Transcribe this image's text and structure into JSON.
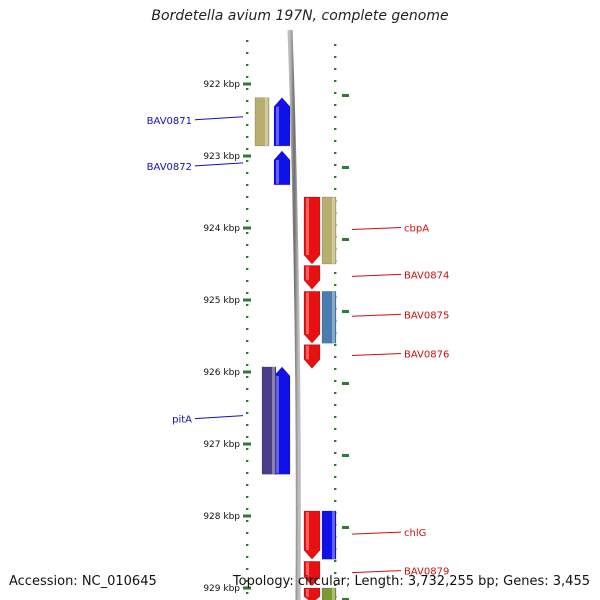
{
  "title": "Bordetella avium 197N, complete genome",
  "footer": {
    "accession": "Accession: NC_010645",
    "topology": "Topology: circular; Length: 3,732,255 bp; Genes: 3,455"
  },
  "colors": {
    "backbone": "#8a8a8a",
    "tick": "#2e7d2e",
    "left_label": "#1010c0",
    "right_label": "#d01010"
  },
  "scale": {
    "unit": "kbp",
    "ticks": [
      {
        "kbp": 922,
        "label": "922 kbp"
      },
      {
        "kbp": 923,
        "label": "923 kbp"
      },
      {
        "kbp": 924,
        "label": "924 kbp"
      },
      {
        "kbp": 925,
        "label": "925 kbp"
      },
      {
        "kbp": 926,
        "label": "926 kbp"
      },
      {
        "kbp": 927,
        "label": "927 kbp"
      },
      {
        "kbp": 928,
        "label": "928 kbp"
      },
      {
        "kbp": 929,
        "label": "929 kbp"
      }
    ]
  },
  "genes": [
    {
      "name": "BAV0871",
      "strand": "+",
      "start_kbp": 922.19,
      "end_kbp": 922.86,
      "gene_color": "#1010e8",
      "cog_color": "#b8ae6e",
      "labeled": true
    },
    {
      "name": "BAV0872",
      "strand": "+",
      "start_kbp": 922.93,
      "end_kbp": 923.4,
      "gene_color": "#1010e8",
      "cog_color": null,
      "labeled": true
    },
    {
      "name": "cbpA",
      "strand": "-",
      "start_kbp": 923.57,
      "end_kbp": 924.5,
      "gene_color": "#e81010",
      "cog_color": "#b8ae6e",
      "labeled": true
    },
    {
      "name": "BAV0874",
      "strand": "-",
      "start_kbp": 924.52,
      "end_kbp": 924.85,
      "gene_color": "#e81010",
      "cog_color": null,
      "labeled": true
    },
    {
      "name": "BAV0875",
      "strand": "-",
      "start_kbp": 924.88,
      "end_kbp": 925.6,
      "gene_color": "#e81010",
      "cog_color": "#4a7eb0",
      "labeled": true
    },
    {
      "name": "BAV0876",
      "strand": "-",
      "start_kbp": 925.62,
      "end_kbp": 925.95,
      "gene_color": "#e81010",
      "cog_color": null,
      "labeled": true
    },
    {
      "name": "pitA",
      "strand": "+",
      "start_kbp": 925.93,
      "end_kbp": 927.42,
      "gene_color": "#1010e8",
      "cog_color": "#4a3e8a",
      "labeled": true
    },
    {
      "name": "chlG",
      "strand": "-",
      "start_kbp": 927.93,
      "end_kbp": 928.6,
      "gene_color": "#e81010",
      "cog_color": "#1010e8",
      "labeled": true
    },
    {
      "name": "BAV0879",
      "strand": "-",
      "start_kbp": 928.63,
      "end_kbp": 928.97,
      "gene_color": "#e81010",
      "cog_color": null,
      "labeled": true
    },
    {
      "name": "",
      "strand": "-",
      "start_kbp": 929.0,
      "end_kbp": 929.2,
      "gene_color": "#e81010",
      "cog_color": "#7a9a30",
      "labeled": false
    }
  ]
}
